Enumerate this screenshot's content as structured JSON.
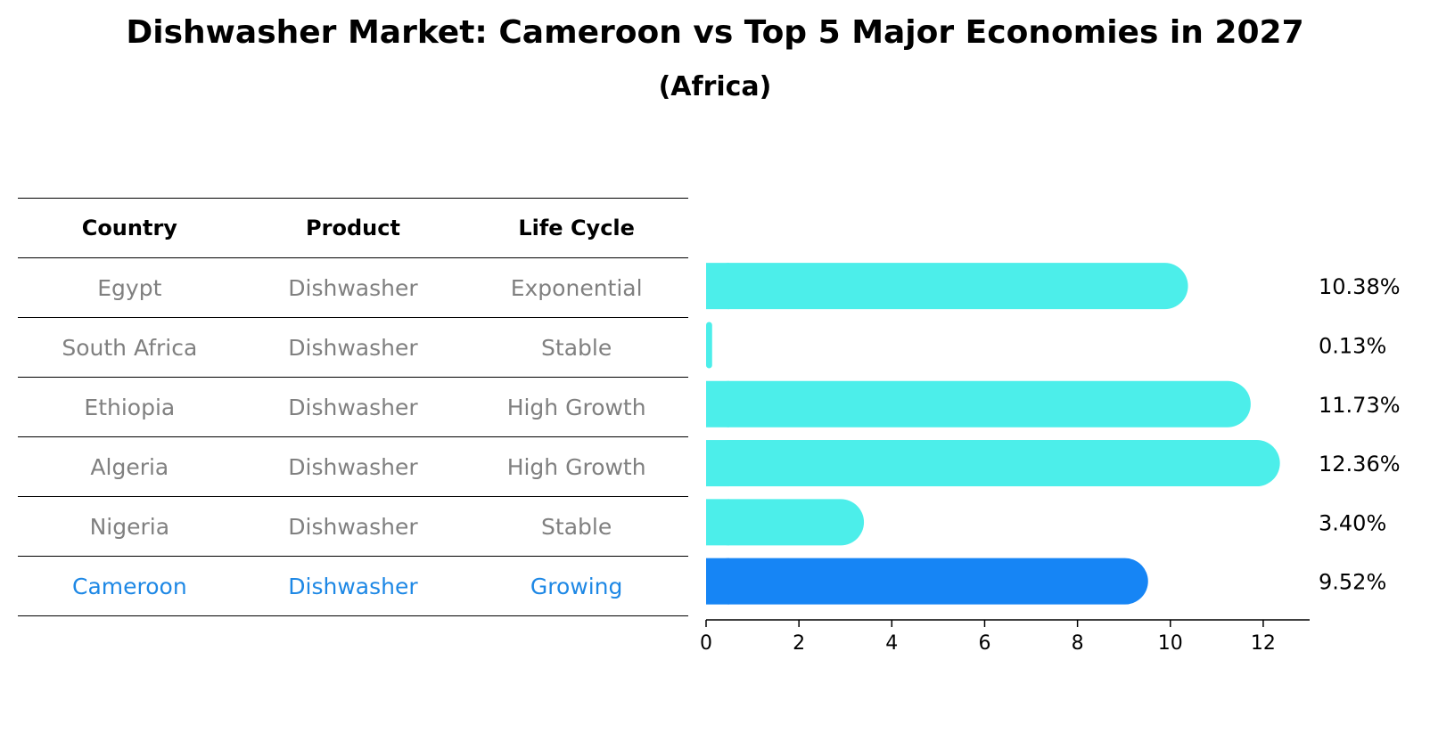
{
  "chart_data": {
    "type": "bar",
    "orientation": "horizontal",
    "title": "Dishwasher Market: Cameroon vs Top 5 Major Economies in 2027",
    "subtitle": "(Africa)",
    "columns": [
      "Country",
      "Product",
      "Life Cycle"
    ],
    "rows": [
      {
        "country": "Egypt",
        "product": "Dishwasher",
        "life_cycle": "Exponential",
        "value": 10.38,
        "label": "10.38%"
      },
      {
        "country": "South Africa",
        "product": "Dishwasher",
        "life_cycle": "Stable",
        "value": 0.13,
        "label": "0.13%"
      },
      {
        "country": "Ethiopia",
        "product": "Dishwasher",
        "life_cycle": "High Growth",
        "value": 11.73,
        "label": "11.73%"
      },
      {
        "country": "Algeria",
        "product": "Dishwasher",
        "life_cycle": "High Growth",
        "value": 12.36,
        "label": "12.36%"
      },
      {
        "country": "Nigeria",
        "product": "Dishwasher",
        "life_cycle": "Stable",
        "value": 3.4,
        "label": "3.40%"
      },
      {
        "country": "Cameroon",
        "product": "Dishwasher",
        "life_cycle": "Growing",
        "value": 9.52,
        "label": "9.52%",
        "highlight": true
      }
    ],
    "xlim": [
      0,
      13
    ],
    "xticks": [
      0,
      2,
      4,
      6,
      8,
      10,
      12
    ],
    "colors": {
      "default": "#4ceeea",
      "highlight": "#1685f5",
      "highlight_text": "#1e88e5",
      "muted_text": "#808080"
    }
  }
}
